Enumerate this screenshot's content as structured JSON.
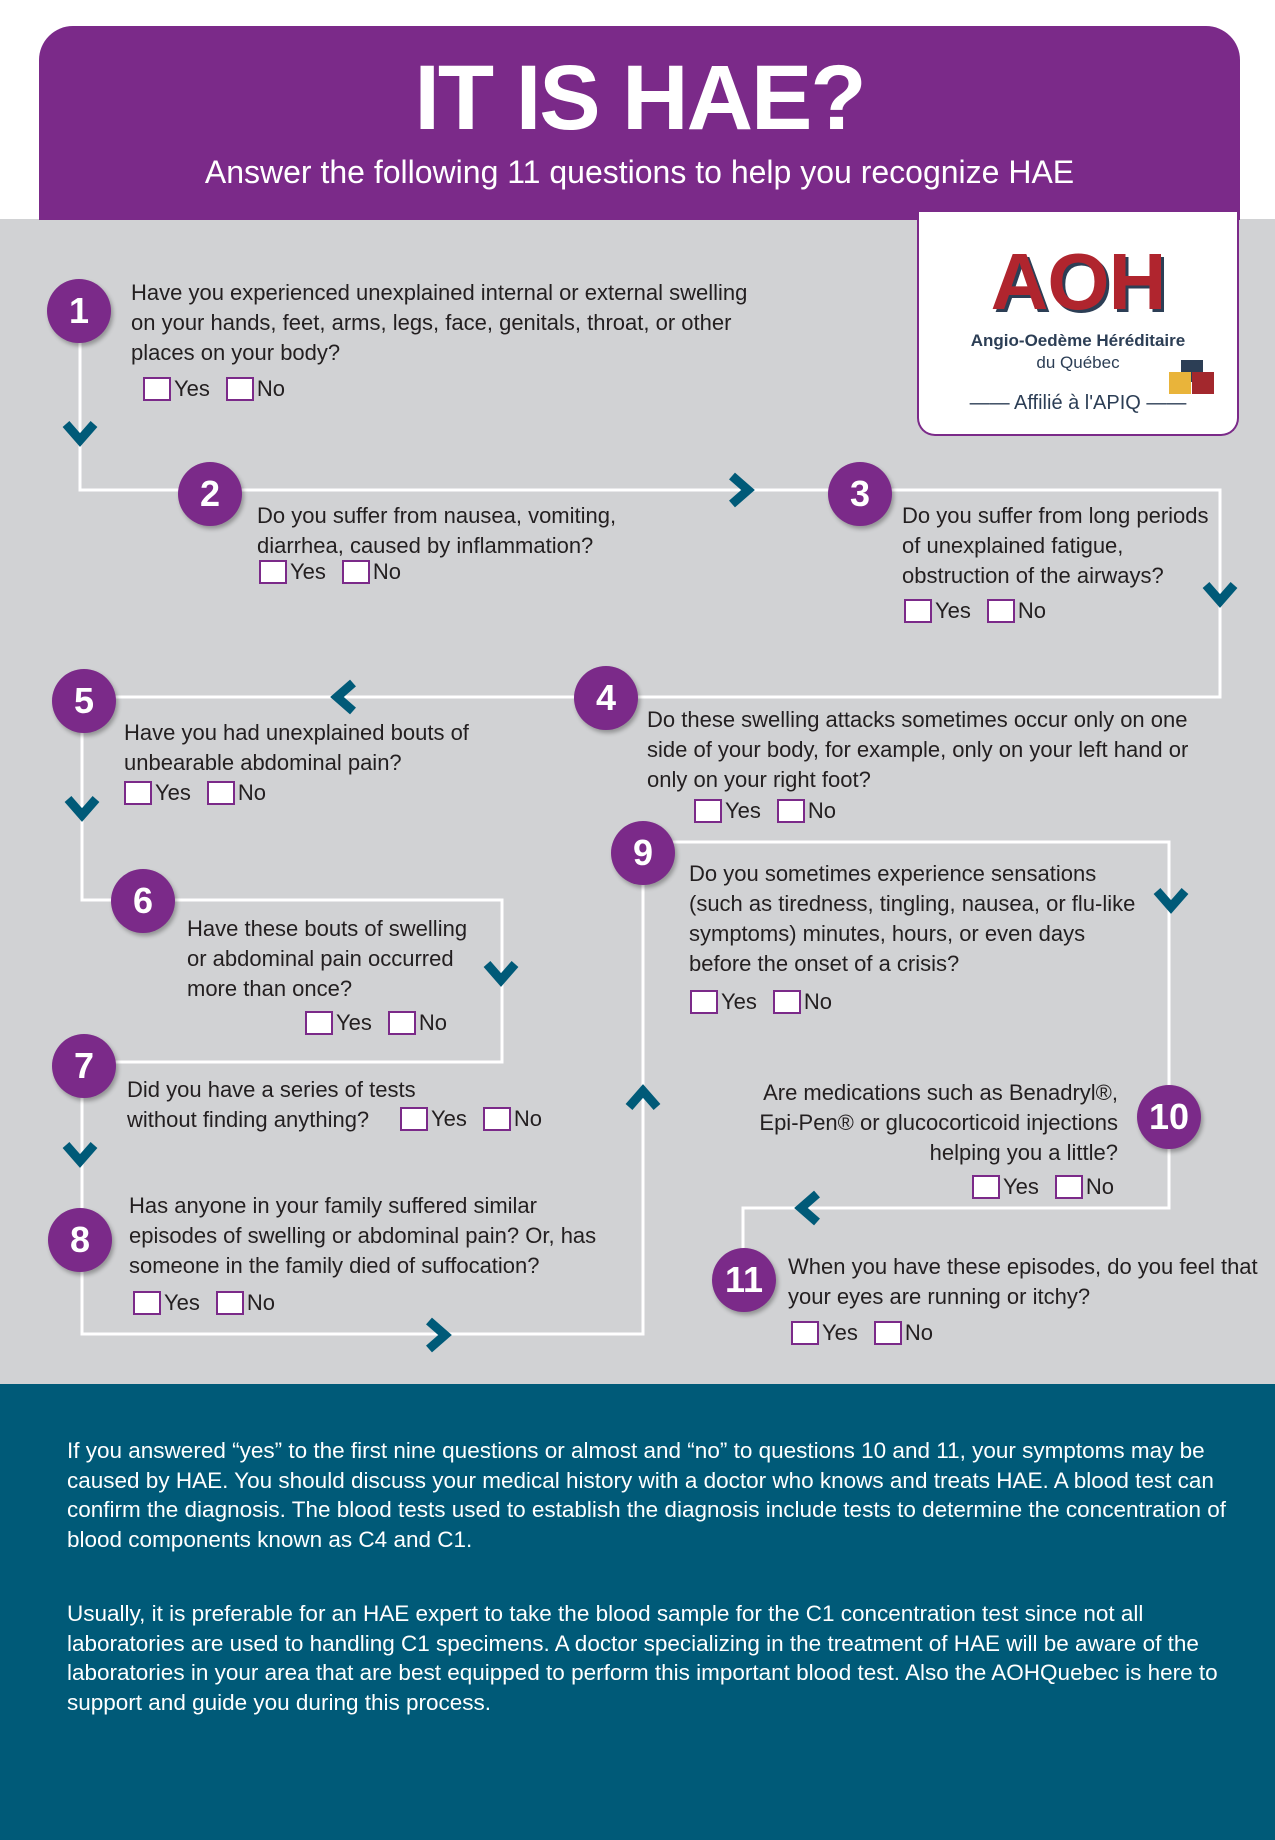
{
  "header": {
    "title": "IT IS HAE?",
    "subtitle": "Answer the following 11 questions to help you recognize HAE"
  },
  "logo": {
    "name": "AOH",
    "line1": "Angio-Oedème Héréditaire",
    "line2": "du Québec",
    "affiliation": "Affilié à l'APIQ"
  },
  "colors": {
    "purple": "#7b2a89",
    "gray": "#d1d2d4",
    "teal": "#005a78"
  },
  "options": {
    "yes": "Yes",
    "no": "No"
  },
  "questions": [
    {
      "n": "1",
      "text": "Have you experienced unexplained internal or external swelling on your hands, feet, arms, legs, face, genitals, throat, or other places on your body?"
    },
    {
      "n": "2",
      "text": "Do you suffer from nausea, vomiting, diarrhea, caused by inflammation?"
    },
    {
      "n": "3",
      "text": "Do you suffer from long periods of unexplained fatigue, obstruction of the airways?"
    },
    {
      "n": "4",
      "text": "Do these swelling attacks sometimes occur only on one side of your body, for example, only on your left hand or only on your right foot?"
    },
    {
      "n": "5",
      "text": "Have you had unexplained bouts of unbearable abdominal pain?"
    },
    {
      "n": "6",
      "text": "Have these bouts of swelling or abdominal pain occurred more than once?"
    },
    {
      "n": "7",
      "text": "Did you have a series of tests without finding anything?"
    },
    {
      "n": "8",
      "text": "Has anyone in your family suffered similar episodes of swelling or abdominal pain? Or, has someone in the family died of suffocation?"
    },
    {
      "n": "9",
      "text": "Do you sometimes experience sensations (such as tiredness, tingling, nausea, or flu-like symptoms) minutes, hours, or even days before the onset of a crisis?"
    },
    {
      "n": "10",
      "text": "Are medications such as Benadryl®, Epi-Pen® or glucocorticoid injections helping you a little?"
    },
    {
      "n": "11",
      "text": "When you have these episodes, do you feel that your eyes are running or itchy?"
    }
  ],
  "footer": {
    "p1": "If you answered “yes” to the first nine questions or almost and “no” to questions 10 and 11, your symptoms may be caused by HAE. You should discuss your medical history with a doctor who knows and treats HAE. A blood test can confirm the diagnosis. The blood tests used to establish the diagnosis include tests to determine the concentration of blood components known as C4 and C1.",
    "p2": "Usually, it is preferable for an HAE expert to take the blood sample for the C1 concentration test since not all laboratories are used to handling C1 specimens. A doctor specializing in the treatment of HAE will be aware of the laboratories in your area that are best equipped to perform this important blood test. Also the AOHQuebec is here to support and guide you during this process."
  }
}
